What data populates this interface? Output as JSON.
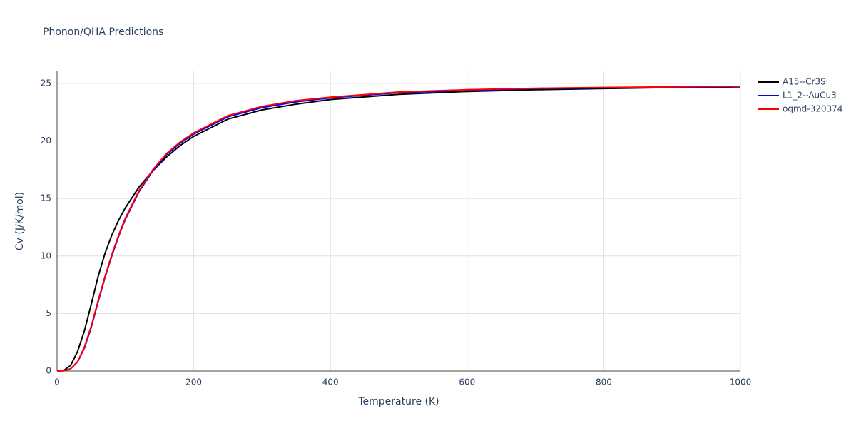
{
  "chart_data": {
    "type": "line",
    "title": "Phonon/QHA Predictions",
    "x_label": "Temperature (K)",
    "y_label": "Cv (J/K/mol)",
    "x": [
      0,
      10,
      20,
      30,
      40,
      50,
      60,
      70,
      80,
      90,
      100,
      120,
      140,
      160,
      180,
      200,
      250,
      300,
      350,
      400,
      500,
      600,
      700,
      800,
      900,
      1000
    ],
    "series": [
      {
        "name": "A15--Cr3Si",
        "color": "#000000",
        "values": [
          0,
          0.05,
          0.5,
          1.7,
          3.5,
          5.8,
          8.2,
          10.2,
          11.8,
          13.1,
          14.2,
          16.0,
          17.4,
          18.6,
          19.6,
          20.4,
          21.9,
          22.7,
          23.2,
          23.6,
          24.05,
          24.3,
          24.45,
          24.55,
          24.65,
          24.7
        ]
      },
      {
        "name": "L1_2--AuCu3",
        "color": "#0000ff",
        "values": [
          0,
          0.02,
          0.2,
          0.8,
          2.0,
          3.8,
          6.0,
          8.1,
          10.0,
          11.7,
          13.2,
          15.6,
          17.4,
          18.8,
          19.8,
          20.6,
          22.1,
          22.9,
          23.4,
          23.75,
          24.2,
          24.4,
          24.55,
          24.62,
          24.68,
          24.72
        ]
      },
      {
        "name": "oqmd-320374",
        "color": "#ff0000",
        "values": [
          0,
          0.02,
          0.2,
          0.8,
          2.1,
          3.9,
          6.1,
          8.2,
          10.1,
          11.8,
          13.3,
          15.7,
          17.5,
          18.9,
          19.9,
          20.7,
          22.2,
          23.0,
          23.5,
          23.8,
          24.25,
          24.45,
          24.58,
          24.65,
          24.7,
          24.75
        ]
      }
    ],
    "xlim": [
      0,
      1000
    ],
    "xticks": [
      0,
      200,
      400,
      600,
      800,
      1000
    ],
    "ylim": [
      0,
      26.05
    ],
    "yticks": [
      0,
      5,
      10,
      15,
      20,
      25
    ],
    "grid": true,
    "legend": "right"
  }
}
